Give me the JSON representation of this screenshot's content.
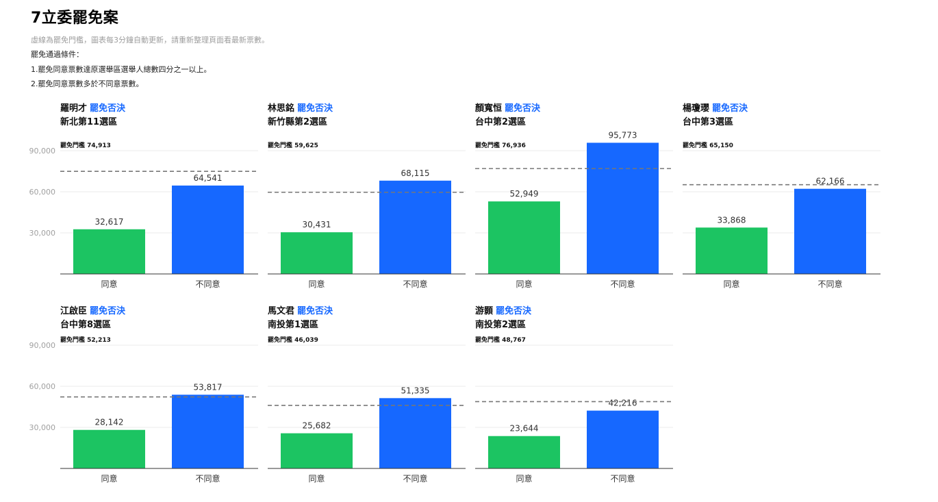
{
  "page": {
    "title": "7立委罷免案",
    "note": "虛線為罷免門檻，圖表每3分鐘自動更新，請重新整理頁面看最新票數。",
    "conditions_title": "罷免通過條件：",
    "conditions": [
      "1.罷免同意票數達原選舉區選舉人總數四分之一以上。",
      "2.罷免同意票數多於不同意票數。"
    ]
  },
  "colors": {
    "agree": "#1cc462",
    "disagree": "#1668ff",
    "status": "#1668ff"
  },
  "chart_data": [
    {
      "type": "bar",
      "name": "羅明才",
      "status": "罷免否決",
      "district": "新北第11選區",
      "threshold_label": "罷免門檻",
      "threshold": 74913,
      "threshold_text": "74,913",
      "categories": [
        "同意",
        "不同意"
      ],
      "values": [
        32617,
        64541
      ],
      "value_labels": [
        "32,617",
        "64,541"
      ],
      "yticks": [
        "90,000",
        "60,000",
        "30,000"
      ],
      "ylim": [
        0,
        100000
      ]
    },
    {
      "type": "bar",
      "name": "林思銘",
      "status": "罷免否決",
      "district": "新竹縣第2選區",
      "threshold_label": "罷免門檻",
      "threshold": 59625,
      "threshold_text": "59,625",
      "categories": [
        "同意",
        "不同意"
      ],
      "values": [
        30431,
        68115
      ],
      "value_labels": [
        "30,431",
        "68,115"
      ],
      "yticks": [],
      "ylim": [
        0,
        100000
      ]
    },
    {
      "type": "bar",
      "name": "顏寬恒",
      "status": "罷免否決",
      "district": "台中第2選區",
      "threshold_label": "罷免門檻",
      "threshold": 76936,
      "threshold_text": "76,936",
      "categories": [
        "同意",
        "不同意"
      ],
      "values": [
        52949,
        95773
      ],
      "value_labels": [
        "52,949",
        "95,773"
      ],
      "yticks": [],
      "ylim": [
        0,
        100000
      ]
    },
    {
      "type": "bar",
      "name": "楊瓊瓔",
      "status": "罷免否決",
      "district": "台中第3選區",
      "threshold_label": "罷免門檻",
      "threshold": 65150,
      "threshold_text": "65,150",
      "categories": [
        "同意",
        "不同意"
      ],
      "values": [
        33868,
        62166
      ],
      "value_labels": [
        "33,868",
        "62,166"
      ],
      "yticks": [],
      "ylim": [
        0,
        100000
      ]
    },
    {
      "type": "bar",
      "name": "江啟臣",
      "status": "罷免否決",
      "district": "台中第8選區",
      "threshold_label": "罷免門檻",
      "threshold": 52213,
      "threshold_text": "52,213",
      "categories": [
        "同意",
        "不同意"
      ],
      "values": [
        28142,
        53817
      ],
      "value_labels": [
        "28,142",
        "53,817"
      ],
      "yticks": [
        "90,000",
        "60,000",
        "30,000"
      ],
      "ylim": [
        0,
        100000
      ]
    },
    {
      "type": "bar",
      "name": "馬文君",
      "status": "罷免否決",
      "district": "南投第1選區",
      "threshold_label": "罷免門檻",
      "threshold": 46039,
      "threshold_text": "46,039",
      "categories": [
        "同意",
        "不同意"
      ],
      "values": [
        25682,
        51335
      ],
      "value_labels": [
        "25,682",
        "51,335"
      ],
      "yticks": [],
      "ylim": [
        0,
        100000
      ]
    },
    {
      "type": "bar",
      "name": "游顥",
      "status": "罷免否決",
      "district": "南投第2選區",
      "threshold_label": "罷免門檻",
      "threshold": 48767,
      "threshold_text": "48,767",
      "categories": [
        "同意",
        "不同意"
      ],
      "values": [
        23644,
        42216
      ],
      "value_labels": [
        "23,644",
        "42,216"
      ],
      "yticks": [],
      "ylim": [
        0,
        100000
      ]
    }
  ]
}
